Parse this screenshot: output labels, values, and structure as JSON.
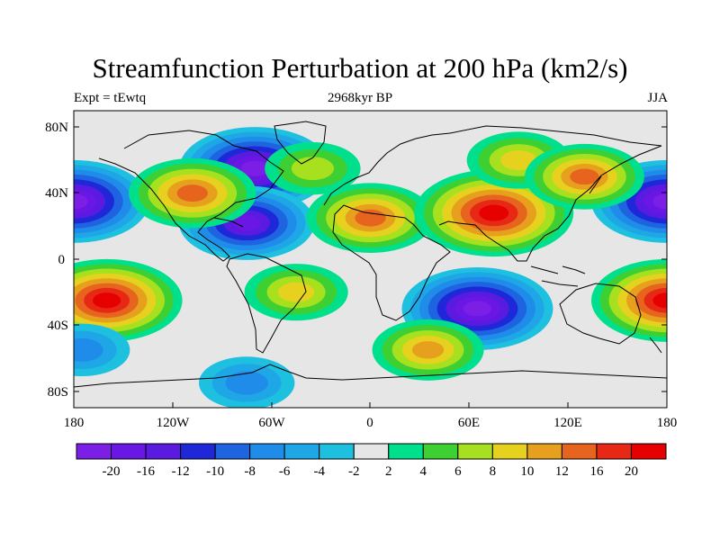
{
  "map": {
    "title": "Streamfunction Perturbation at 200 hPa (km2/s)",
    "left_label": "Expt = tEwtq",
    "center_label": "2968kyr BP",
    "right_label": "JJA",
    "projection": "cylindrical equidistant",
    "lat_ticks": [
      "80N",
      "40N",
      "0",
      "40S",
      "80S"
    ],
    "lon_ticks": [
      "180",
      "120W",
      "60W",
      "0",
      "60E",
      "120E",
      "180"
    ],
    "lon_range": [
      -180,
      180
    ],
    "lat_range": [
      -90,
      90
    ],
    "colors": {
      "ocean_background": "#e6e6e6",
      "coastline": "#000000",
      "frame": "#000000"
    },
    "anomalies": [
      {
        "name": "north-pacific-low",
        "lon": -180,
        "lat": 35,
        "value": -20
      },
      {
        "name": "north-pacific-low-east",
        "lon": 180,
        "lat": 35,
        "value": -20
      },
      {
        "name": "hudson-low",
        "lon": -70,
        "lat": 55,
        "value": -20
      },
      {
        "name": "caribbean-low",
        "lon": -75,
        "lat": 22,
        "value": -16
      },
      {
        "name": "mexico-high",
        "lon": -108,
        "lat": 40,
        "value": 14
      },
      {
        "name": "north-atlantic-high",
        "lon": -35,
        "lat": 55,
        "value": 6
      },
      {
        "name": "sahara-high",
        "lon": 0,
        "lat": 25,
        "value": 14
      },
      {
        "name": "tibetan-high",
        "lon": 75,
        "lat": 28,
        "value": 22
      },
      {
        "name": "siberia-high",
        "lon": 90,
        "lat": 60,
        "value": 8
      },
      {
        "name": "east-asia-high",
        "lon": 130,
        "lat": 50,
        "value": 12
      },
      {
        "name": "south-pacific-high",
        "lon": -160,
        "lat": -25,
        "value": 20
      },
      {
        "name": "southwest-pacific-high",
        "lon": 180,
        "lat": -25,
        "value": 20
      },
      {
        "name": "south-indian-low",
        "lon": 65,
        "lat": -30,
        "value": -20
      },
      {
        "name": "south-atlantic-high",
        "lon": -45,
        "lat": -20,
        "value": 8
      },
      {
        "name": "southern-ocean-high",
        "lon": 35,
        "lat": -55,
        "value": 10
      },
      {
        "name": "antarctic-low",
        "lon": -75,
        "lat": -75,
        "value": -6
      },
      {
        "name": "southern-pacific-low",
        "lon": -175,
        "lat": -55,
        "value": -6
      }
    ]
  },
  "colorbar": {
    "labels": [
      "-20",
      "-16",
      "-12",
      "-10",
      "-8",
      "-6",
      "-4",
      "-2",
      "2",
      "4",
      "6",
      "8",
      "10",
      "12",
      "16",
      "20"
    ],
    "levels": [
      -20,
      -16,
      -12,
      -10,
      -8,
      -6,
      -4,
      -2,
      2,
      4,
      6,
      8,
      10,
      12,
      16,
      20
    ],
    "colors": [
      "#7b1fe6",
      "#6a16e4",
      "#5a1ae0",
      "#1e28d8",
      "#1e64e0",
      "#1e8ce8",
      "#1ea6e6",
      "#1ec0e0",
      "#e6e6e6",
      "#00e08c",
      "#3ecf32",
      "#a6e01e",
      "#e6d21e",
      "#e6a01e",
      "#e6641e",
      "#e62814",
      "#e60000"
    ]
  }
}
